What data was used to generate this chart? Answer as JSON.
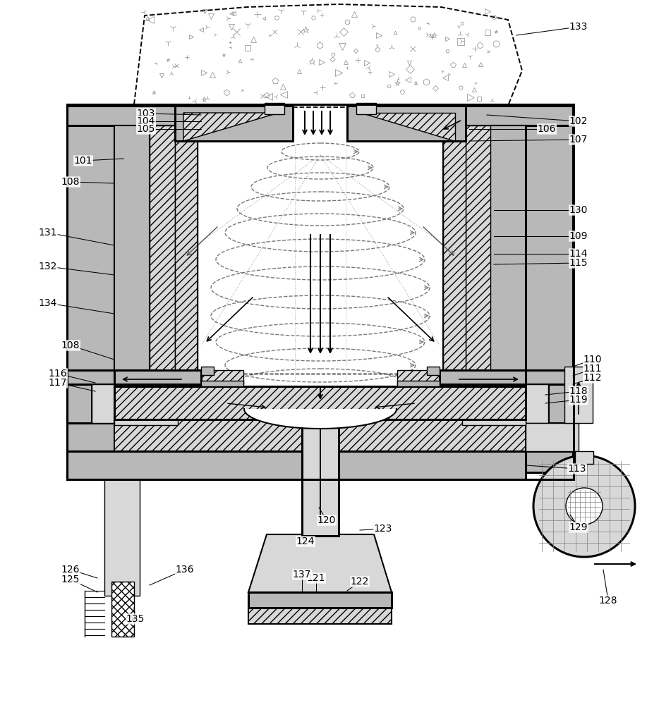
{
  "bg_color": "#ffffff",
  "black": "#000000",
  "gray": "#b8b8b8",
  "lgray": "#d8d8d8",
  "dgray": "#888888",
  "white": "#ffffff",
  "labels": [
    [
      "101",
      118,
      228,
      175,
      225
    ],
    [
      "102",
      820,
      172,
      690,
      163
    ],
    [
      "103",
      207,
      161,
      285,
      163
    ],
    [
      "104",
      207,
      172,
      285,
      172
    ],
    [
      "105",
      207,
      183,
      285,
      183
    ],
    [
      "106",
      775,
      183,
      665,
      183
    ],
    [
      "107",
      820,
      198,
      665,
      200
    ],
    [
      "108",
      100,
      258,
      162,
      260
    ],
    [
      "108",
      100,
      490,
      162,
      510
    ],
    [
      "109",
      820,
      335,
      700,
      335
    ],
    [
      "110",
      840,
      510,
      812,
      520
    ],
    [
      "111",
      840,
      523,
      812,
      533
    ],
    [
      "112",
      840,
      536,
      812,
      545
    ],
    [
      "113",
      818,
      665,
      745,
      660
    ],
    [
      "114",
      820,
      360,
      700,
      360
    ],
    [
      "115",
      820,
      373,
      700,
      375
    ],
    [
      "116",
      82,
      530,
      135,
      543
    ],
    [
      "117",
      82,
      543,
      135,
      555
    ],
    [
      "118",
      820,
      555,
      773,
      560
    ],
    [
      "119",
      820,
      567,
      773,
      572
    ],
    [
      "120",
      463,
      738,
      452,
      720
    ],
    [
      "121",
      448,
      820,
      448,
      840
    ],
    [
      "122",
      510,
      825,
      492,
      838
    ],
    [
      "123",
      543,
      750,
      510,
      752
    ],
    [
      "124",
      433,
      768,
      426,
      762
    ],
    [
      "125",
      100,
      822,
      138,
      840
    ],
    [
      "126",
      100,
      808,
      138,
      820
    ],
    [
      "128",
      862,
      852,
      855,
      808
    ],
    [
      "129",
      820,
      748,
      808,
      730
    ],
    [
      "130",
      820,
      298,
      700,
      298
    ],
    [
      "131",
      68,
      330,
      162,
      348
    ],
    [
      "132",
      68,
      378,
      162,
      390
    ],
    [
      "133",
      820,
      38,
      732,
      50
    ],
    [
      "134",
      68,
      430,
      162,
      445
    ],
    [
      "135",
      192,
      878,
      190,
      862
    ],
    [
      "136",
      262,
      808,
      212,
      830
    ],
    [
      "137",
      428,
      815,
      428,
      838
    ]
  ]
}
